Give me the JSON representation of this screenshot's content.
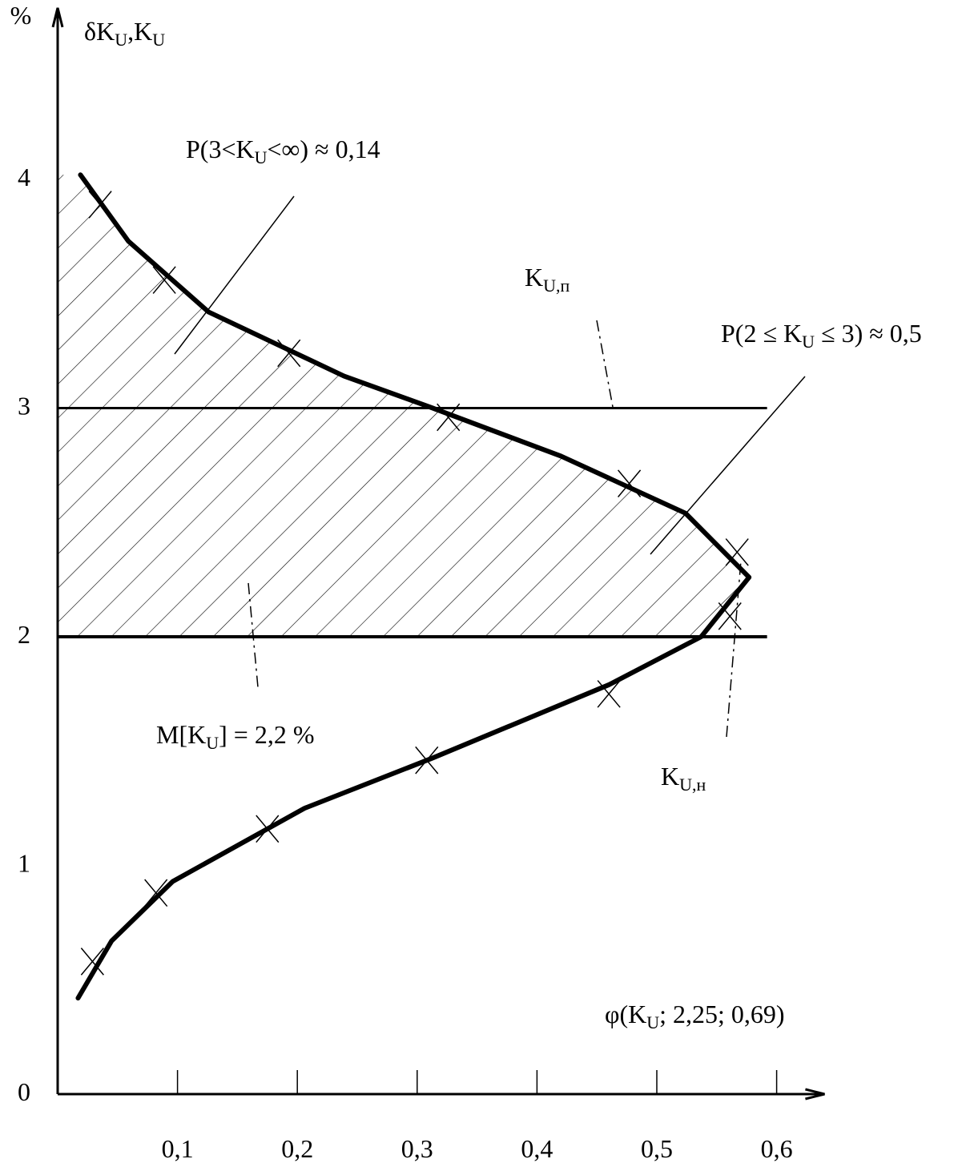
{
  "chart_data": {
    "type": "line",
    "y_unit": "%",
    "y_label": [
      "δK",
      "U",
      ",K",
      "U"
    ],
    "xlim": [
      0,
      0.64
    ],
    "ylim": [
      0,
      4.75
    ],
    "xticks": [
      {
        "value": 0.1,
        "label": "0,1"
      },
      {
        "value": 0.2,
        "label": "0,2"
      },
      {
        "value": 0.3,
        "label": "0,3"
      },
      {
        "value": 0.4,
        "label": "0,4"
      },
      {
        "value": 0.5,
        "label": "0,5"
      },
      {
        "value": 0.6,
        "label": "0,6"
      }
    ],
    "yticks": [
      0,
      1,
      2,
      3,
      4
    ],
    "curve": {
      "x": [
        0.019,
        0.059,
        0.126,
        0.239,
        0.313,
        0.42,
        0.524,
        0.577,
        0.537,
        0.46,
        0.313,
        0.206,
        0.096,
        0.045,
        0.017
      ],
      "y": [
        4.02,
        3.73,
        3.42,
        3.14,
        3.0,
        2.79,
        2.54,
        2.26,
        2.0,
        1.79,
        1.47,
        1.25,
        0.93,
        0.67,
        0.42
      ]
    },
    "markers": {
      "x": [
        0.0355,
        0.089,
        0.193,
        0.326,
        0.477,
        0.567,
        0.561,
        0.46,
        0.308,
        0.175,
        0.082,
        0.029
      ],
      "y": [
        3.89,
        3.56,
        3.24,
        2.96,
        2.67,
        2.37,
        2.09,
        1.75,
        1.46,
        1.16,
        0.88,
        0.58
      ]
    },
    "reference_lines": [
      {
        "y": 3,
        "x_end": 0.592
      },
      {
        "y": 2,
        "x_end": 0.592
      }
    ],
    "annotations": [
      [
        "P(3<K",
        "U",
        "<∞) ≈ 0,14"
      ],
      [
        "K",
        "U,п"
      ],
      [
        "P(2 ≤ K",
        "U",
        " ≤ 3) ≈ 0,5"
      ],
      [
        "M[K",
        "U",
        "] = 2,2 %"
      ],
      [
        "K",
        "U,н"
      ],
      [
        "φ(K",
        "U",
        "; 2,25; 0,69)"
      ]
    ]
  }
}
